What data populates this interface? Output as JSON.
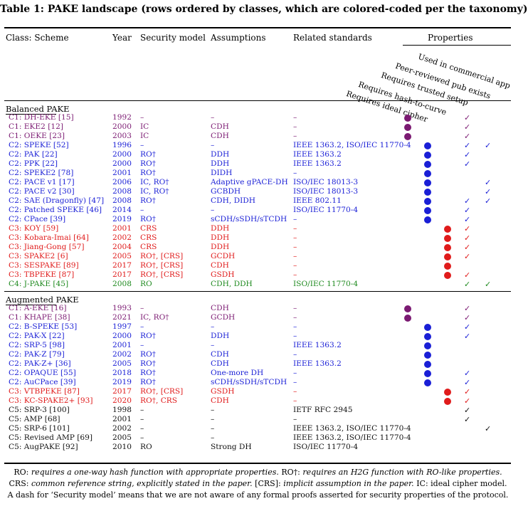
{
  "caption": "Table 1: PAKE landscape (rows ordered by classes, which are colored-coded per the taxonomy)",
  "headers": {
    "scheme": "Class: Scheme",
    "year": "Year",
    "security": "Security model",
    "assumptions": "Assumptions",
    "standards": "Related standards",
    "properties": "Properties"
  },
  "property_headers": [
    "Requires ideal cipher",
    "Requires hash-to-curve",
    "Requires trusted setup",
    "Peer-reviewed pub exists",
    "Used in commercial app"
  ],
  "colors": {
    "C1": "#7b1a72",
    "C2": "#1a1fd6",
    "C3": "#e01b1b",
    "C4": "#1f8a1f",
    "C5": "#111111"
  },
  "sections": [
    {
      "label": "Balanced PAKE",
      "rows": [
        {
          "cls": "C1",
          "scheme": "C1: DH-EKE [15]",
          "year": "1992",
          "sec": "–",
          "assum": "–",
          "std": "–",
          "props": [
            1,
            0,
            0,
            1,
            0
          ]
        },
        {
          "cls": "C1",
          "scheme": "C1: EKE2 [12]",
          "year": "2000",
          "sec": "IC",
          "assum": "CDH",
          "std": "–",
          "props": [
            1,
            0,
            0,
            1,
            0
          ]
        },
        {
          "cls": "C1",
          "scheme": "C1: OEKE [23]",
          "year": "2003",
          "sec": "IC",
          "assum": "CDH",
          "std": "–",
          "props": [
            1,
            0,
            0,
            1,
            0
          ]
        },
        {
          "cls": "C2",
          "scheme": "C2: SPEKE [52]",
          "year": "1996",
          "sec": "–",
          "assum": "–",
          "std": "IEEE 1363.2, ISO/IEC 11770-4",
          "props": [
            0,
            1,
            0,
            1,
            1
          ]
        },
        {
          "cls": "C2",
          "scheme": "C2: PAK [22]",
          "year": "2000",
          "sec": "RO†",
          "assum": "DDH",
          "std": "IEEE 1363.2",
          "props": [
            0,
            1,
            0,
            1,
            0
          ]
        },
        {
          "cls": "C2",
          "scheme": "C2: PPK [22]",
          "year": "2000",
          "sec": "RO†",
          "assum": "DDH",
          "std": "IEEE 1363.2",
          "props": [
            0,
            1,
            0,
            1,
            0
          ]
        },
        {
          "cls": "C2",
          "scheme": "C2: SPEKE2 [78]",
          "year": "2001",
          "sec": "RO†",
          "assum": "DIDH",
          "std": "–",
          "props": [
            0,
            1,
            0,
            0,
            0
          ]
        },
        {
          "cls": "C2",
          "scheme": "C2: PACE v1 [17]",
          "year": "2006",
          "sec": "IC, RO†",
          "assum": "Adaptive gPACE-DH",
          "std": "ISO/IEC 18013-3",
          "props": [
            0,
            1,
            0,
            0,
            1
          ]
        },
        {
          "cls": "C2",
          "scheme": "C2: PACE v2 [30]",
          "year": "2008",
          "sec": "IC, RO†",
          "assum": "GCBDH",
          "std": "ISO/IEC 18013-3",
          "props": [
            0,
            1,
            0,
            0,
            1
          ]
        },
        {
          "cls": "C2",
          "scheme": "C2: SAE (Dragonfly) [47]",
          "year": "2008",
          "sec": "RO†",
          "assum": "CDH, DIDH",
          "std": "IEEE 802.11",
          "props": [
            0,
            1,
            0,
            1,
            1
          ]
        },
        {
          "cls": "C2",
          "scheme": "C2: Patched SPEKE [46]",
          "year": "2014",
          "sec": "–",
          "assum": "–",
          "std": "ISO/IEC 11770-4",
          "props": [
            0,
            1,
            0,
            1,
            0
          ]
        },
        {
          "cls": "C2",
          "scheme": "C2: CPace [39]",
          "year": "2019",
          "sec": "RO†",
          "assum": "sCDH/sSDH/sTCDH",
          "std": "–",
          "props": [
            0,
            1,
            0,
            1,
            0
          ]
        },
        {
          "cls": "C3",
          "scheme": "C3: KOY [59]",
          "year": "2001",
          "sec": "CRS",
          "assum": "DDH",
          "std": "–",
          "props": [
            0,
            0,
            1,
            1,
            0
          ]
        },
        {
          "cls": "C3",
          "scheme": "C3: Kobara-Imai [64]",
          "year": "2002",
          "sec": "CRS",
          "assum": "DDH",
          "std": "–",
          "props": [
            0,
            0,
            1,
            1,
            0
          ]
        },
        {
          "cls": "C3",
          "scheme": "C3: Jiang-Gong [57]",
          "year": "2004",
          "sec": "CRS",
          "assum": "DDH",
          "std": "–",
          "props": [
            0,
            0,
            1,
            1,
            0
          ]
        },
        {
          "cls": "C3",
          "scheme": "C3: SPAKE2 [6]",
          "year": "2005",
          "sec": "RO†, [CRS]",
          "assum": "GCDH",
          "std": "–",
          "props": [
            0,
            0,
            1,
            1,
            0
          ]
        },
        {
          "cls": "C3",
          "scheme": "C3: SESPAKE [89]",
          "year": "2017",
          "sec": "RO†, [CRS]",
          "assum": "CDH",
          "std": "–",
          "props": [
            0,
            0,
            1,
            0,
            0
          ]
        },
        {
          "cls": "C3",
          "scheme": "C3: TBPEKE [87]",
          "year": "2017",
          "sec": "RO†, [CRS]",
          "assum": "GSDH",
          "std": "–",
          "props": [
            0,
            0,
            1,
            1,
            0
          ]
        },
        {
          "cls": "C4",
          "scheme": "C4: J-PAKE [45]",
          "year": "2008",
          "sec": "RO",
          "assum": "CDH, DDH",
          "std": "ISO/IEC 11770-4",
          "props": [
            0,
            0,
            0,
            1,
            1
          ]
        }
      ]
    },
    {
      "label": "Augmented PAKE",
      "rows": [
        {
          "cls": "C1",
          "scheme": "C1: A-EKE [16]",
          "year": "1993",
          "sec": "–",
          "assum": "CDH",
          "std": "–",
          "props": [
            1,
            0,
            0,
            1,
            0
          ]
        },
        {
          "cls": "C1",
          "scheme": "C1: KHAPE [38]",
          "year": "2021",
          "sec": "IC, RO†",
          "assum": "GCDH",
          "std": "–",
          "props": [
            1,
            0,
            0,
            1,
            0
          ]
        },
        {
          "cls": "C2",
          "scheme": "C2: B-SPEKE [53]",
          "year": "1997",
          "sec": "–",
          "assum": "–",
          "std": "–",
          "props": [
            0,
            1,
            0,
            1,
            0
          ]
        },
        {
          "cls": "C2",
          "scheme": "C2: PAK-X [22]",
          "year": "2000",
          "sec": "RO†",
          "assum": "DDH",
          "std": "–",
          "props": [
            0,
            1,
            0,
            1,
            0
          ]
        },
        {
          "cls": "C2",
          "scheme": "C2: SRP-5 [98]",
          "year": "2001",
          "sec": "–",
          "assum": "–",
          "std": "IEEE 1363.2",
          "props": [
            0,
            1,
            0,
            0,
            0
          ]
        },
        {
          "cls": "C2",
          "scheme": "C2: PAK-Z [79]",
          "year": "2002",
          "sec": "RO†",
          "assum": "CDH",
          "std": "–",
          "props": [
            0,
            1,
            0,
            0,
            0
          ]
        },
        {
          "cls": "C2",
          "scheme": "C2: PAK-Z+ [36]",
          "year": "2005",
          "sec": "RO†",
          "assum": "CDH",
          "std": "IEEE 1363.2",
          "props": [
            0,
            1,
            0,
            0,
            0
          ]
        },
        {
          "cls": "C2",
          "scheme": "C2: OPAQUE [55]",
          "year": "2018",
          "sec": "RO†",
          "assum": "One-more DH",
          "std": "–",
          "props": [
            0,
            1,
            0,
            1,
            0
          ]
        },
        {
          "cls": "C2",
          "scheme": "C2: AuCPace [39]",
          "year": "2019",
          "sec": "RO†",
          "assum": "sCDH/sSDH/sTCDH",
          "std": "–",
          "props": [
            0,
            1,
            0,
            1,
            0
          ]
        },
        {
          "cls": "C3",
          "scheme": "C3: VTBPEKE [87]",
          "year": "2017",
          "sec": "RO†, [CRS]",
          "assum": "GSDH",
          "std": "–",
          "props": [
            0,
            0,
            1,
            1,
            0
          ]
        },
        {
          "cls": "C3",
          "scheme": "C3: KC-SPAKE2+ [93]",
          "year": "2020",
          "sec": "RO†, CRS",
          "assum": "CDH",
          "std": "–",
          "props": [
            0,
            0,
            1,
            1,
            0
          ]
        },
        {
          "cls": "C5",
          "scheme": "C5: SRP-3 [100]",
          "year": "1998",
          "sec": "–",
          "assum": "–",
          "std": "IETF RFC 2945",
          "props": [
            0,
            0,
            0,
            1,
            0
          ]
        },
        {
          "cls": "C5",
          "scheme": "C5: AMP [68]",
          "year": "2001",
          "sec": "–",
          "assum": "–",
          "std": "–",
          "props": [
            0,
            0,
            0,
            1,
            0
          ]
        },
        {
          "cls": "C5",
          "scheme": "C5: SRP-6 [101]",
          "year": "2002",
          "sec": "–",
          "assum": "–",
          "std": "IEEE 1363.2, ISO/IEC 11770-4",
          "props": [
            0,
            0,
            0,
            0,
            1
          ]
        },
        {
          "cls": "C5",
          "scheme": "C5: Revised AMP [69]",
          "year": "2005",
          "sec": "–",
          "assum": "–",
          "std": "IEEE 1363.2, ISO/IEC 11770-4",
          "props": [
            0,
            0,
            0,
            0,
            0
          ]
        },
        {
          "cls": "C5",
          "scheme": "C5: AugPAKE [92]",
          "year": "2010",
          "sec": "RO",
          "assum": "Strong DH",
          "std": "ISO/IEC 11770-4",
          "props": [
            0,
            0,
            0,
            0,
            0
          ]
        }
      ]
    }
  ],
  "footnotes": {
    "line1_a": "RO:",
    "line1_b": "requires a one-way hash function with appropriate properties.",
    "line1_c": "RO†:",
    "line1_d": "requires an H2G function with RO-like properties.",
    "line2_a": "CRS:",
    "line2_b": "common reference string, explicitly stated in the paper.",
    "line2_c": "[CRS]:",
    "line2_d": "implicit assumption in the paper.",
    "line2_e": "IC: ideal cipher model.",
    "line3": "A dash for ‘Security model’ means that we are not aware of any formal proofs asserted for security properties of the protocol."
  }
}
